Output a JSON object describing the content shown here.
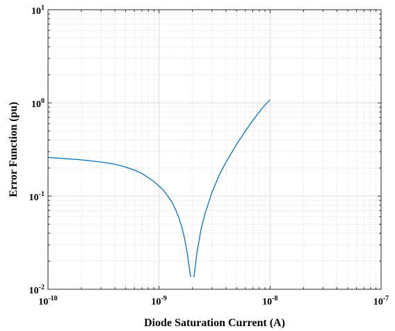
{
  "chart_data": {
    "type": "line",
    "title": "",
    "xlabel": "Diode Saturation Current (A)",
    "ylabel": "Error Function (pu)",
    "xscale": "log",
    "yscale": "log",
    "xlim": [
      1e-10,
      1e-07
    ],
    "ylim": [
      0.01,
      10
    ],
    "grid": true,
    "minor_grid": true,
    "x_ticks": [
      {
        "base": "10",
        "exp": "-10"
      },
      {
        "base": "10",
        "exp": "-9"
      },
      {
        "base": "10",
        "exp": "-8"
      },
      {
        "base": "10",
        "exp": "-7"
      }
    ],
    "y_ticks": [
      {
        "base": "10",
        "exp": "-2"
      },
      {
        "base": "10",
        "exp": "-1"
      },
      {
        "base": "10",
        "exp": "0"
      },
      {
        "base": "10",
        "exp": "1"
      }
    ],
    "series": [
      {
        "color": "#0072BD",
        "segments": [
          {
            "x": [
              1e-10,
              2e-10,
              3e-10,
              4e-10,
              5e-10,
              6e-10,
              7e-10,
              8e-10,
              9e-10,
              1e-09,
              1.1e-09,
              1.2e-09,
              1.3e-09,
              1.4e-09,
              1.5e-09,
              1.6e-09,
              1.7e-09,
              1.8e-09,
              1.85e-09,
              1.9e-09,
              1.93e-09
            ],
            "y": [
              0.26,
              0.245,
              0.232,
              0.22,
              0.205,
              0.19,
              0.175,
              0.158,
              0.143,
              0.128,
              0.115,
              0.1,
              0.087,
              0.073,
              0.06,
              0.047,
              0.035,
              0.024,
              0.019,
              0.015,
              0.0135
            ]
          },
          {
            "x": [
              2.06e-09,
              2.1e-09,
              2.2e-09,
              2.4e-09,
              2.6e-09,
              3e-09,
              3.5e-09,
              4e-09,
              5e-09,
              6e-09,
              7e-09,
              8e-09,
              9e-09,
              1e-08
            ],
            "y": [
              0.0135,
              0.016,
              0.025,
              0.045,
              0.065,
              0.11,
              0.17,
              0.23,
              0.36,
              0.5,
              0.65,
              0.8,
              0.95,
              1.08
            ]
          }
        ]
      }
    ]
  }
}
